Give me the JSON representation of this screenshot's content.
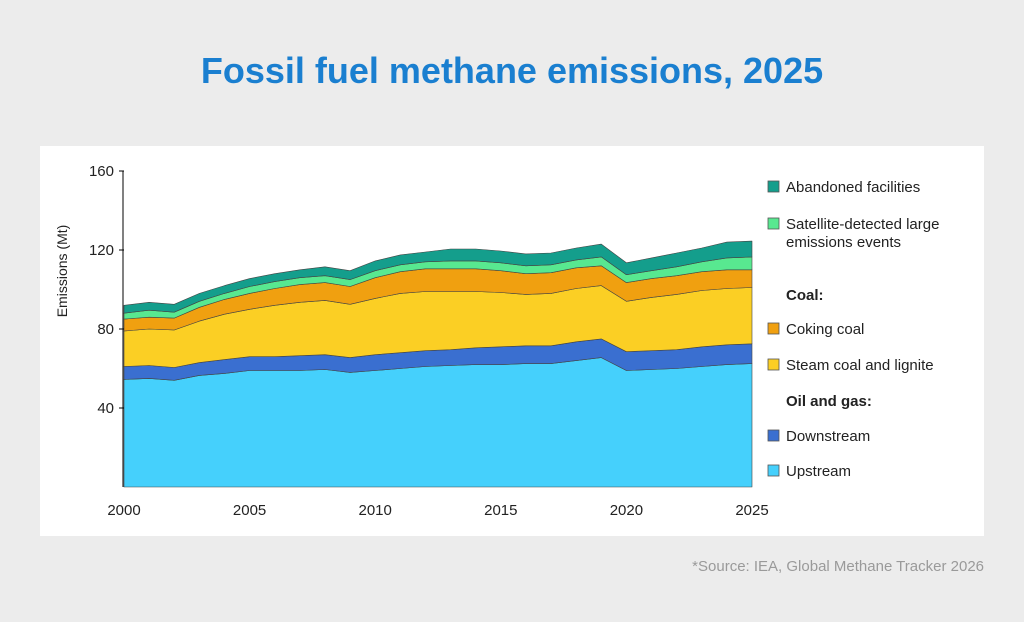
{
  "title": "Fossil fuel methane emissions, 2025",
  "source": "*Source: IEA, Global Methane Tracker 2026",
  "chart_data": {
    "type": "area",
    "stacked": true,
    "ylabel": "Emissions (Mt)",
    "xlabel": "",
    "xlim": [
      2000,
      2025
    ],
    "ylim": [
      0,
      160
    ],
    "x_ticks": [
      "2000",
      "2005",
      "2010",
      "2015",
      "2020",
      "2025"
    ],
    "y_ticks": [
      "40",
      "80",
      "120",
      "160"
    ],
    "grid": false,
    "legend_position": "right",
    "x": [
      2000,
      2001,
      2002,
      2003,
      2004,
      2005,
      2006,
      2007,
      2008,
      2009,
      2010,
      2011,
      2012,
      2013,
      2014,
      2015,
      2016,
      2017,
      2018,
      2019,
      2020,
      2021,
      2022,
      2023,
      2024,
      2025
    ],
    "series": [
      {
        "name": "Upstream",
        "color": "#45d0fc",
        "values": [
          54.5,
          55,
          54,
          56.5,
          57.5,
          59,
          59,
          59,
          59.5,
          58,
          59,
          60,
          61,
          61.5,
          62,
          62,
          62.5,
          62.5,
          64,
          65.5,
          59,
          59.5,
          60,
          61,
          62,
          62.5
        ]
      },
      {
        "name": "Downstream",
        "color": "#3a6fd0",
        "values": [
          6.5,
          6.5,
          6.5,
          6.5,
          7,
          7,
          7,
          7.5,
          7.5,
          7.5,
          8,
          8,
          8,
          8,
          8.5,
          9,
          9,
          9,
          9.5,
          9.5,
          9.5,
          9.5,
          9.5,
          10,
          10,
          10
        ]
      },
      {
        "name": "Steam coal and lignite",
        "color": "#fbcf24",
        "values": [
          18,
          18.5,
          19,
          21,
          23,
          24,
          26,
          27,
          27.5,
          27,
          28.5,
          30,
          30,
          29.5,
          28.5,
          27.5,
          26,
          26.5,
          27,
          27,
          25.5,
          27,
          28,
          28.5,
          28.5,
          28.5
        ]
      },
      {
        "name": "Coking coal",
        "color": "#f0a010",
        "values": [
          6,
          6,
          6,
          7,
          7.5,
          8,
          8.5,
          9,
          9,
          9,
          10.5,
          11,
          11.5,
          11.5,
          11.5,
          11,
          10.5,
          10.5,
          10.5,
          10,
          9.5,
          9.5,
          9.5,
          9.5,
          9.5,
          9
        ]
      },
      {
        "name": "Satellite-detected large emissions events",
        "color": "#58e890",
        "values": [
          3,
          3.5,
          3,
          3,
          3,
          3.5,
          3.5,
          3.5,
          3.5,
          3.5,
          3.5,
          3.5,
          3.5,
          4,
          4,
          4,
          4,
          4,
          4,
          4.5,
          4,
          4,
          4.5,
          5,
          6,
          6.5
        ]
      },
      {
        "name": "Abandoned facilities",
        "color": "#149e8c",
        "values": [
          4,
          4,
          4,
          4,
          4,
          4,
          4,
          4,
          4.5,
          4.5,
          5,
          5,
          5,
          6,
          6,
          6,
          6,
          6,
          6,
          6.5,
          6,
          6.5,
          7,
          7,
          8,
          8
        ]
      }
    ],
    "legend": {
      "items": [
        {
          "label": "Abandoned facilities",
          "color": "#149e8c"
        },
        {
          "label": "Satellite-detected large emissions events",
          "line1": "Satellite-detected large",
          "line2": "emissions events",
          "color": "#58e890"
        },
        {
          "label": "Coking coal",
          "color": "#f0a010"
        },
        {
          "label": "Steam coal and lignite",
          "color": "#fbcf24"
        },
        {
          "label": "Downstream",
          "color": "#3a6fd0"
        },
        {
          "label": "Upstream",
          "color": "#45d0fc"
        }
      ],
      "headers": [
        "Coal:",
        "Oil and gas:"
      ]
    }
  }
}
